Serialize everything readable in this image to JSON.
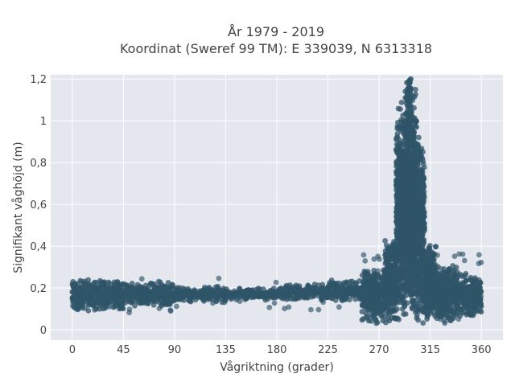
{
  "title_lines": [
    "År 1979 - 2019",
    "Koordinat (Sweref 99 TM): E 339039, N 6313318"
  ],
  "chart_data": {
    "type": "scatter",
    "title": "År 1979 - 2019\nKoordinat (Sweref 99 TM): E 339039, N 6313318",
    "xlabel": "Vågriktning (grader)",
    "ylabel": "Signifikant våghöjd (m)",
    "xlim": [
      -19,
      379
    ],
    "ylim": [
      -0.05,
      1.22
    ],
    "xticks": [
      0,
      45,
      90,
      135,
      180,
      225,
      270,
      315,
      360
    ],
    "xtick_labels": [
      "0",
      "45",
      "90",
      "135",
      "180",
      "225",
      "270",
      "315",
      "360"
    ],
    "yticks": [
      0,
      0.2,
      0.4,
      0.6,
      0.8,
      1.0,
      1.2
    ],
    "ytick_labels": [
      "0",
      "0,2",
      "0,4",
      "0,6",
      "0,8",
      "1",
      "1,2"
    ],
    "grid": true,
    "marker_color": "#2f5468",
    "plot_background": "#e5e7ef",
    "grid_color": "#ffffff",
    "bands": [
      {
        "x_from": 0,
        "x_to": 45,
        "y_min": 0.09,
        "y_max": 0.24
      },
      {
        "x_from": 45,
        "x_to": 90,
        "y_min": 0.11,
        "y_max": 0.23
      },
      {
        "x_from": 90,
        "x_to": 135,
        "y_min": 0.13,
        "y_max": 0.21
      },
      {
        "x_from": 135,
        "x_to": 180,
        "y_min": 0.14,
        "y_max": 0.2
      },
      {
        "x_from": 180,
        "x_to": 225,
        "y_min": 0.14,
        "y_max": 0.22
      },
      {
        "x_from": 225,
        "x_to": 255,
        "y_min": 0.13,
        "y_max": 0.24
      },
      {
        "x_from": 255,
        "x_to": 275,
        "y_min": 0.03,
        "y_max": 0.3
      },
      {
        "x_from": 275,
        "x_to": 285,
        "y_min": 0.01,
        "y_max": 0.45
      },
      {
        "x_from": 285,
        "x_to": 293,
        "y_min": 0.01,
        "y_max": 1.1
      },
      {
        "x_from": 293,
        "x_to": 303,
        "y_min": 0.01,
        "y_max": 1.2
      },
      {
        "x_from": 303,
        "x_to": 310,
        "y_min": 0.01,
        "y_max": 0.95
      },
      {
        "x_from": 310,
        "x_to": 320,
        "y_min": 0.02,
        "y_max": 0.45
      },
      {
        "x_from": 320,
        "x_to": 340,
        "y_min": 0.03,
        "y_max": 0.32
      },
      {
        "x_from": 340,
        "x_to": 360,
        "y_min": 0.06,
        "y_max": 0.28
      }
    ],
    "peak": {
      "x": 298,
      "y": 1.2
    }
  }
}
